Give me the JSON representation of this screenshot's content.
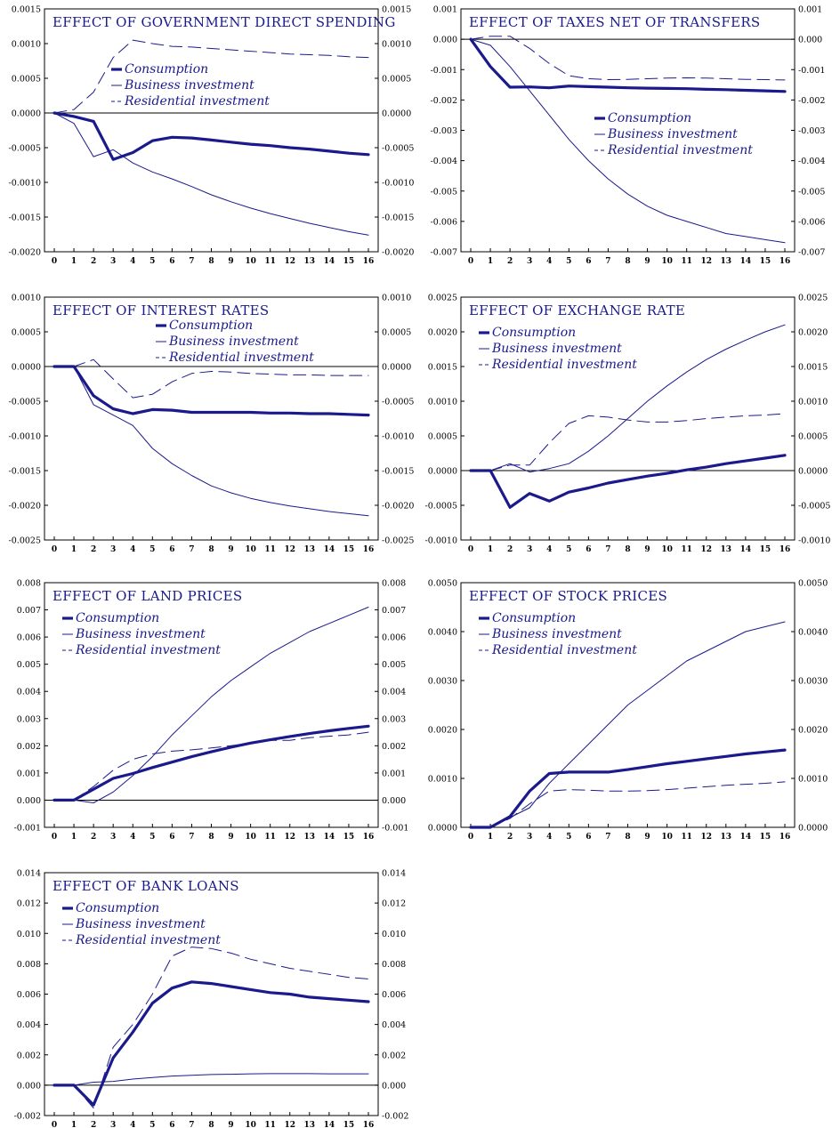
{
  "colors": {
    "series": "#1a1a8c",
    "axis": "#000000",
    "background": "#ffffff"
  },
  "legend_labels": [
    "Consumption",
    "Business investment",
    "Residential investment"
  ],
  "chart_data": [
    {
      "type": "line",
      "title": "EFFECT OF GOVERNMENT DIRECT SPENDING",
      "x": [
        0,
        1,
        2,
        3,
        4,
        5,
        6,
        7,
        8,
        9,
        10,
        11,
        12,
        13,
        14,
        15,
        16
      ],
      "ylim": [
        -0.002,
        0.0015
      ],
      "yticks": [
        "-0.0020",
        "-0.0015",
        "-0.0010",
        "-0.0005",
        "0.0000",
        "0.0005",
        "0.0010",
        "0.0015"
      ],
      "legend_position": "upper-middle",
      "series": [
        {
          "name": "Consumption",
          "style": "thick",
          "values": [
            0,
            -5e-05,
            -0.00012,
            -0.00067,
            -0.00057,
            -0.0004,
            -0.00035,
            -0.00036,
            -0.00039,
            -0.00042,
            -0.00045,
            -0.00047,
            -0.0005,
            -0.00052,
            -0.00055,
            -0.00058,
            -0.0006
          ]
        },
        {
          "name": "Business investment",
          "style": "thin",
          "values": [
            0,
            -0.00015,
            -0.00063,
            -0.00053,
            -0.00072,
            -0.00085,
            -0.00095,
            -0.00106,
            -0.00118,
            -0.00128,
            -0.00137,
            -0.00145,
            -0.00152,
            -0.00159,
            -0.00165,
            -0.00171,
            -0.00176
          ]
        },
        {
          "name": "Residential investment",
          "style": "dashed",
          "values": [
            0,
            5e-05,
            0.0003,
            0.0008,
            0.00105,
            0.001,
            0.00096,
            0.00095,
            0.00093,
            0.00091,
            0.00089,
            0.00087,
            0.00085,
            0.00084,
            0.00083,
            0.00081,
            0.0008
          ]
        }
      ]
    },
    {
      "type": "line",
      "title": "EFFECT OF TAXES NET OF TRANSFERS",
      "x": [
        0,
        1,
        2,
        3,
        4,
        5,
        6,
        7,
        8,
        9,
        10,
        11,
        12,
        13,
        14,
        15,
        16
      ],
      "ylim": [
        -0.007,
        0.001
      ],
      "yticks": [
        "-0.007",
        "-0.006",
        "-0.005",
        "-0.004",
        "-0.003",
        "-0.002",
        "-0.001",
        "0.000",
        "0.001"
      ],
      "legend_position": "middle-right",
      "series": [
        {
          "name": "Consumption",
          "style": "thick",
          "values": [
            0,
            -0.0009,
            -0.00158,
            -0.00157,
            -0.0016,
            -0.00154,
            -0.00156,
            -0.00158,
            -0.0016,
            -0.00161,
            -0.00162,
            -0.00163,
            -0.00165,
            -0.00166,
            -0.00168,
            -0.0017,
            -0.00172
          ]
        },
        {
          "name": "Business investment",
          "style": "thin",
          "values": [
            0,
            -0.0002,
            -0.0009,
            -0.0017,
            -0.0025,
            -0.0033,
            -0.004,
            -0.0046,
            -0.0051,
            -0.0055,
            -0.0058,
            -0.006,
            -0.0062,
            -0.0064,
            -0.0065,
            -0.0066,
            -0.0067
          ]
        },
        {
          "name": "Residential investment",
          "style": "dashed",
          "values": [
            0,
            0.0001,
            0.0001,
            -0.0003,
            -0.0008,
            -0.0012,
            -0.0013,
            -0.00133,
            -0.00132,
            -0.0013,
            -0.00128,
            -0.00127,
            -0.00128,
            -0.0013,
            -0.00132,
            -0.00133,
            -0.00134
          ]
        }
      ]
    },
    {
      "type": "line",
      "title": "EFFECT OF INTEREST RATES",
      "x": [
        0,
        1,
        2,
        3,
        4,
        5,
        6,
        7,
        8,
        9,
        10,
        11,
        12,
        13,
        14,
        15,
        16
      ],
      "ylim": [
        -0.0025,
        0.001
      ],
      "yticks": [
        "-0.0025",
        "-0.0020",
        "-0.0015",
        "-0.0010",
        "-0.0005",
        "0.0000",
        "0.0005",
        "0.0010"
      ],
      "legend_position": "top-middle",
      "series": [
        {
          "name": "Consumption",
          "style": "thick",
          "values": [
            0,
            0,
            -0.00042,
            -0.00061,
            -0.00068,
            -0.00062,
            -0.00063,
            -0.00066,
            -0.00066,
            -0.00066,
            -0.00066,
            -0.00067,
            -0.00067,
            -0.00068,
            -0.00068,
            -0.00069,
            -0.0007
          ]
        },
        {
          "name": "Business investment",
          "style": "thin",
          "values": [
            0,
            0,
            -0.00055,
            -0.0007,
            -0.00085,
            -0.00118,
            -0.0014,
            -0.00157,
            -0.00172,
            -0.00182,
            -0.0019,
            -0.00196,
            -0.00201,
            -0.00205,
            -0.00209,
            -0.00212,
            -0.00215
          ]
        },
        {
          "name": "Residential investment",
          "style": "dashed",
          "values": [
            0,
            0,
            0.0001,
            -0.00018,
            -0.00045,
            -0.0004,
            -0.00022,
            -0.0001,
            -7e-05,
            -8e-05,
            -0.0001,
            -0.00011,
            -0.00012,
            -0.00012,
            -0.00013,
            -0.00013,
            -0.00013
          ]
        }
      ]
    },
    {
      "type": "line",
      "title": "EFFECT OF EXCHANGE RATE",
      "x": [
        0,
        1,
        2,
        3,
        4,
        5,
        6,
        7,
        8,
        9,
        10,
        11,
        12,
        13,
        14,
        15,
        16
      ],
      "ylim": [
        -0.001,
        0.0025
      ],
      "yticks": [
        "-0.0010",
        "-0.0005",
        "0.0000",
        "0.0005",
        "0.0010",
        "0.0015",
        "0.0020",
        "0.0025"
      ],
      "legend_position": "upper-left",
      "series": [
        {
          "name": "Consumption",
          "style": "thick",
          "values": [
            0,
            0,
            -0.00053,
            -0.00033,
            -0.00044,
            -0.00031,
            -0.00025,
            -0.00018,
            -0.00013,
            -8e-05,
            -4e-05,
            1e-05,
            5e-05,
            0.0001,
            0.00014,
            0.00018,
            0.00022
          ]
        },
        {
          "name": "Business investment",
          "style": "thin",
          "values": [
            0,
            0,
            0.0001,
            -2e-05,
            3e-05,
            0.0001,
            0.00028,
            0.0005,
            0.00075,
            0.001,
            0.00122,
            0.00142,
            0.0016,
            0.00175,
            0.00188,
            0.002,
            0.0021
          ]
        },
        {
          "name": "Residential investment",
          "style": "dashed",
          "values": [
            0,
            0,
            8e-05,
            8e-05,
            0.0004,
            0.00068,
            0.00079,
            0.00077,
            0.00073,
            0.0007,
            0.0007,
            0.00072,
            0.00075,
            0.00077,
            0.00079,
            0.0008,
            0.00082
          ]
        }
      ]
    },
    {
      "type": "line",
      "title": "EFFECT OF LAND PRICES",
      "x": [
        0,
        1,
        2,
        3,
        4,
        5,
        6,
        7,
        8,
        9,
        10,
        11,
        12,
        13,
        14,
        15,
        16
      ],
      "ylim": [
        -0.001,
        0.008
      ],
      "yticks": [
        "-0.001",
        "0.000",
        "0.001",
        "0.002",
        "0.003",
        "0.004",
        "0.005",
        "0.006",
        "0.007",
        "0.008"
      ],
      "legend_position": "upper-left",
      "series": [
        {
          "name": "Consumption",
          "style": "thick",
          "values": [
            0,
            0,
            0.0004,
            0.0008,
            0.00098,
            0.0012,
            0.0014,
            0.0016,
            0.00178,
            0.00195,
            0.0021,
            0.00222,
            0.00234,
            0.00245,
            0.00255,
            0.00264,
            0.00272
          ]
        },
        {
          "name": "Business investment",
          "style": "thin",
          "values": [
            0,
            0,
            -0.0001,
            0.0003,
            0.0009,
            0.0016,
            0.0024,
            0.0031,
            0.0038,
            0.0044,
            0.0049,
            0.0054,
            0.0058,
            0.0062,
            0.0065,
            0.0068,
            0.0071
          ]
        },
        {
          "name": "Residential investment",
          "style": "dashed",
          "values": [
            0,
            0,
            0.0005,
            0.0011,
            0.0015,
            0.0017,
            0.0018,
            0.00185,
            0.00192,
            0.002,
            0.0021,
            0.0022,
            0.0022,
            0.0023,
            0.00235,
            0.0024,
            0.0025
          ]
        }
      ]
    },
    {
      "type": "line",
      "title": "EFFECT OF STOCK PRICES",
      "x": [
        0,
        1,
        2,
        3,
        4,
        5,
        6,
        7,
        8,
        9,
        10,
        11,
        12,
        13,
        14,
        15,
        16
      ],
      "ylim": [
        0,
        0.005
      ],
      "yticks": [
        "0.0000",
        "0.0010",
        "0.0020",
        "0.0030",
        "0.0040",
        "0.0050"
      ],
      "legend_position": "upper-left",
      "series": [
        {
          "name": "Consumption",
          "style": "thick",
          "values": [
            0,
            0,
            0.00022,
            0.00074,
            0.0011,
            0.00113,
            0.00113,
            0.00113,
            0.00118,
            0.00124,
            0.0013,
            0.00135,
            0.0014,
            0.00145,
            0.0015,
            0.00154,
            0.00158
          ]
        },
        {
          "name": "Business investment",
          "style": "thin",
          "values": [
            0,
            0,
            0.0002,
            0.0004,
            0.0009,
            0.0013,
            0.0017,
            0.0021,
            0.0025,
            0.0028,
            0.0031,
            0.0034,
            0.0036,
            0.0038,
            0.004,
            0.0041,
            0.0042
          ]
        },
        {
          "name": "Residential investment",
          "style": "dashed",
          "values": [
            0,
            0,
            0.00018,
            0.00048,
            0.00074,
            0.00077,
            0.00076,
            0.00074,
            0.00074,
            0.00075,
            0.00077,
            0.0008,
            0.00083,
            0.00086,
            0.00088,
            0.0009,
            0.00093
          ]
        }
      ]
    },
    {
      "type": "line",
      "title": "EFFECT OF BANK LOANS",
      "x": [
        0,
        1,
        2,
        3,
        4,
        5,
        6,
        7,
        8,
        9,
        10,
        11,
        12,
        13,
        14,
        15,
        16
      ],
      "ylim": [
        -0.002,
        0.014
      ],
      "yticks": [
        "-0.002",
        "0.000",
        "0.002",
        "0.004",
        "0.006",
        "0.008",
        "0.010",
        "0.012",
        "0.014"
      ],
      "legend_position": "upper-left",
      "series": [
        {
          "name": "Consumption",
          "style": "thick",
          "values": [
            0,
            0,
            -0.0013,
            0.0018,
            0.0035,
            0.0054,
            0.0064,
            0.0068,
            0.0067,
            0.0065,
            0.0063,
            0.0061,
            0.006,
            0.0058,
            0.0057,
            0.0056,
            0.0055
          ]
        },
        {
          "name": "Business investment",
          "style": "thin",
          "values": [
            0,
            0,
            0.0002,
            0.00025,
            0.0004,
            0.0005,
            0.0006,
            0.00065,
            0.0007,
            0.00072,
            0.00075,
            0.00076,
            0.00076,
            0.00076,
            0.00075,
            0.00075,
            0.00075
          ]
        },
        {
          "name": "Residential investment",
          "style": "dashed",
          "values": [
            0,
            0,
            -0.0015,
            0.0025,
            0.004,
            0.006,
            0.0085,
            0.0091,
            0.009,
            0.0087,
            0.0083,
            0.008,
            0.0077,
            0.0075,
            0.0073,
            0.0071,
            0.007
          ]
        }
      ]
    }
  ]
}
